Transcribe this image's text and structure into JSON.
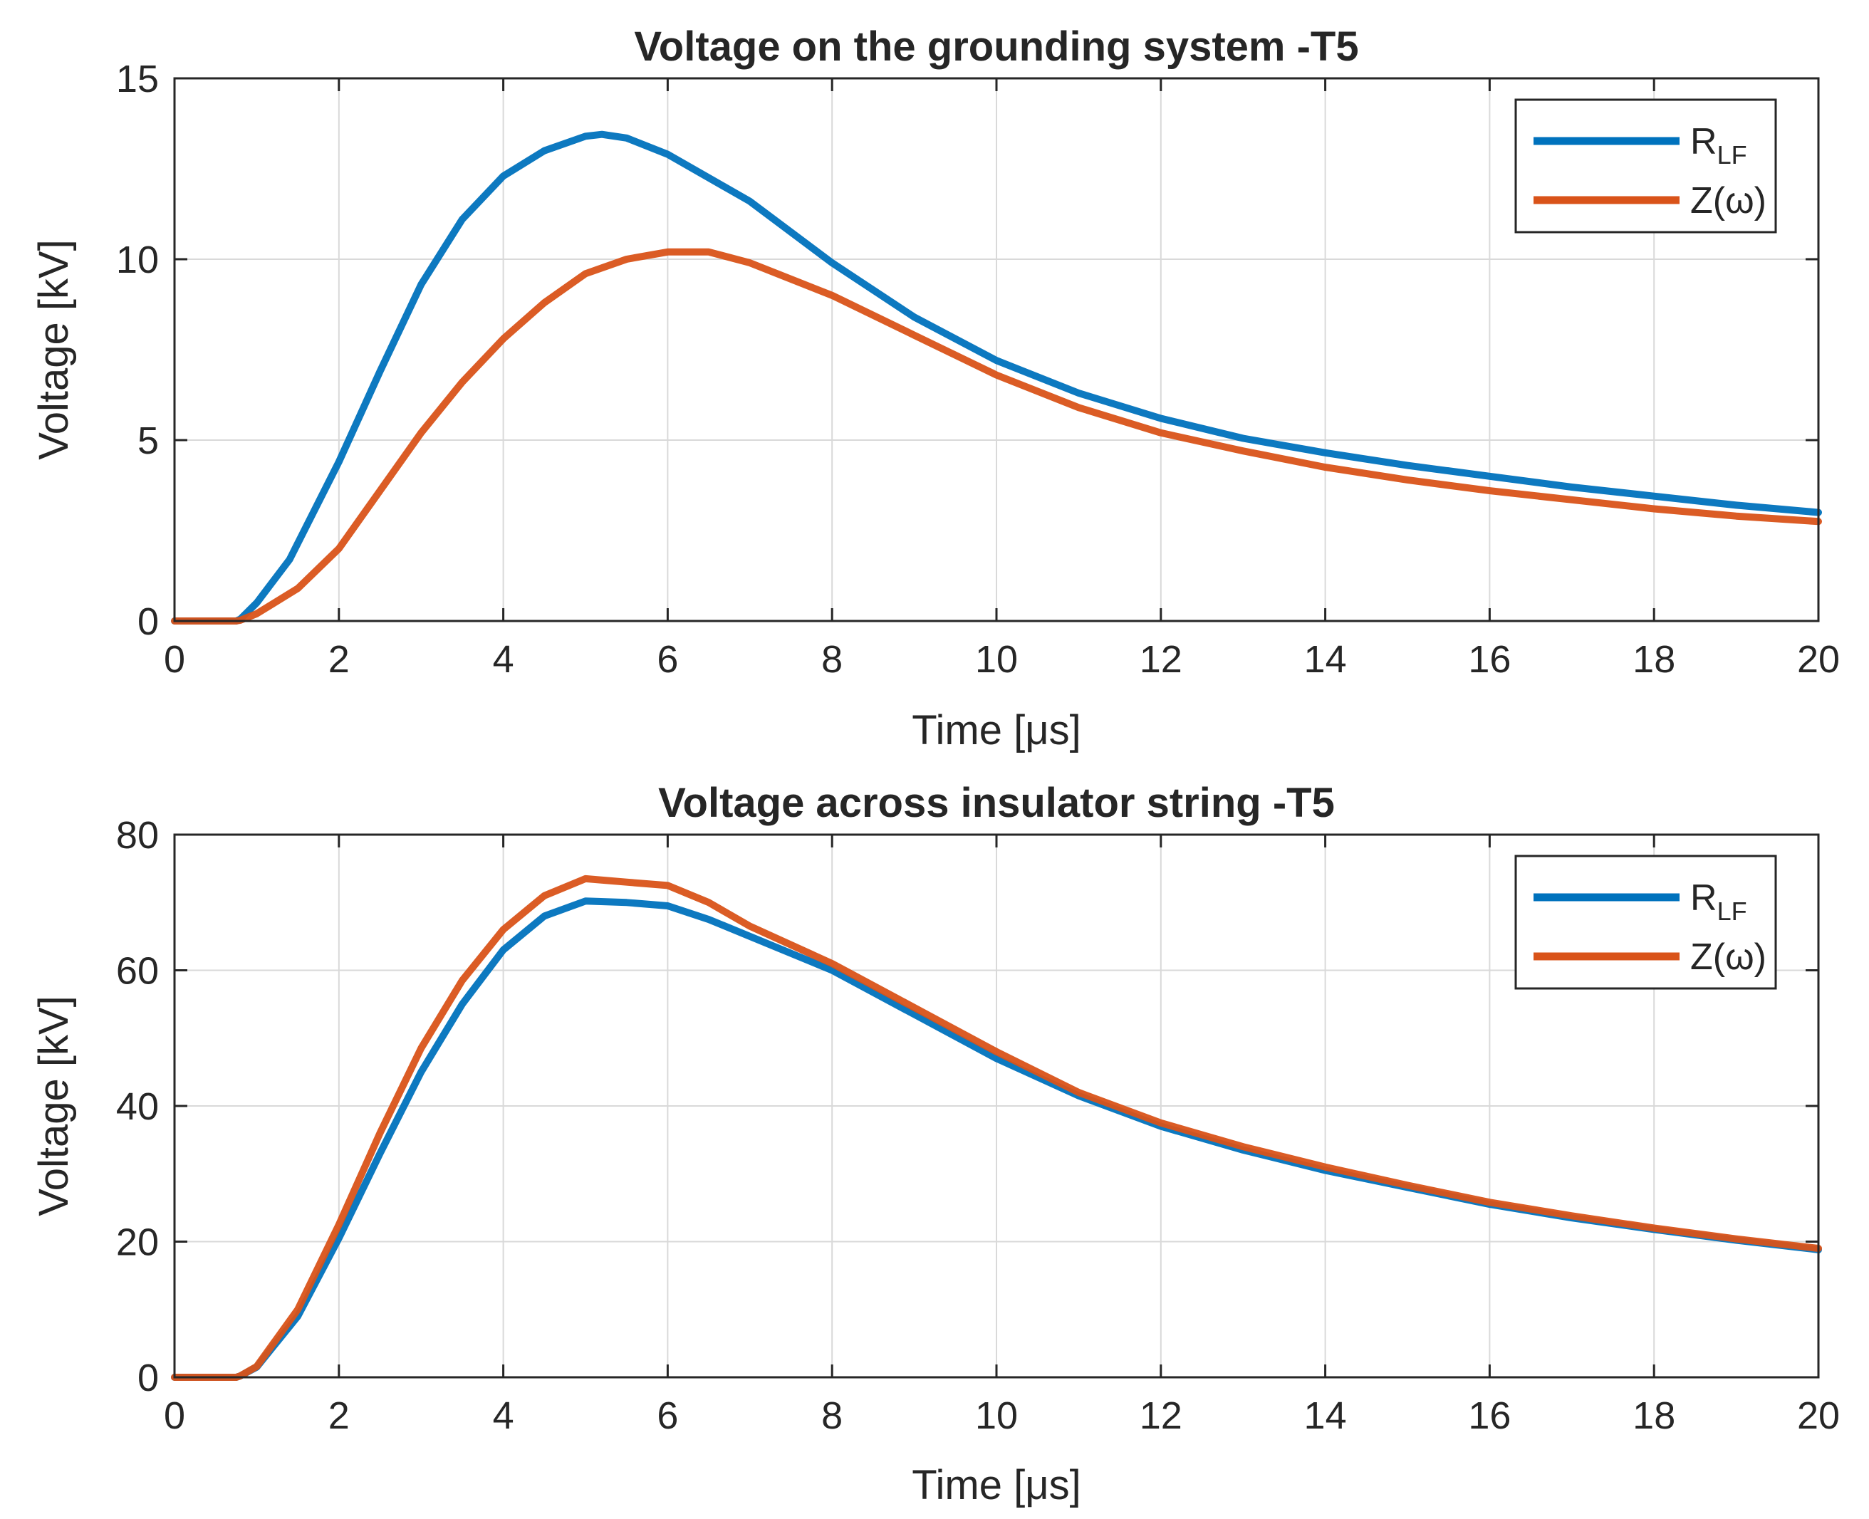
{
  "chart_data": [
    {
      "type": "line",
      "title": "Voltage on the grounding system -T5",
      "xlabel": "Time [μs]",
      "ylabel": "Voltage [kV]",
      "xlim": [
        0,
        20
      ],
      "ylim": [
        0,
        15
      ],
      "xticks": [
        "0",
        "2",
        "4",
        "6",
        "8",
        "10",
        "12",
        "14",
        "16",
        "18",
        "20"
      ],
      "yticks": [
        "0",
        "5",
        "10",
        "15"
      ],
      "grid": true,
      "legend_position": "top-right",
      "series": [
        {
          "name": "R_LF",
          "legend_main": "R",
          "legend_sub": "LF",
          "color": "#0072BD",
          "x": [
            0,
            0.75,
            0.8,
            1.0,
            1.4,
            2.0,
            2.5,
            3.0,
            3.5,
            4.0,
            4.5,
            5.0,
            5.2,
            5.5,
            6.0,
            7.0,
            8.0,
            9.0,
            10.0,
            11.0,
            12.0,
            13.0,
            14.0,
            15.0,
            16.0,
            17.0,
            18.0,
            19.0,
            20.0
          ],
          "y": [
            0,
            0,
            0.05,
            0.5,
            1.7,
            4.4,
            6.9,
            9.3,
            11.1,
            12.3,
            13.0,
            13.4,
            13.45,
            13.35,
            12.9,
            11.6,
            9.9,
            8.4,
            7.2,
            6.3,
            5.6,
            5.05,
            4.65,
            4.3,
            4.0,
            3.7,
            3.45,
            3.2,
            3.0
          ]
        },
        {
          "name": "Z(ω)",
          "legend_main": "Z(ω)",
          "legend_sub": "",
          "color": "#D95319",
          "x": [
            0,
            0.75,
            0.8,
            1.0,
            1.5,
            2.0,
            2.5,
            3.0,
            3.5,
            4.0,
            4.5,
            5.0,
            5.5,
            6.0,
            6.5,
            7.0,
            8.0,
            9.0,
            10.0,
            11.0,
            12.0,
            13.0,
            14.0,
            15.0,
            16.0,
            17.0,
            18.0,
            19.0,
            20.0
          ],
          "y": [
            0,
            0,
            0.02,
            0.2,
            0.9,
            2.0,
            3.6,
            5.2,
            6.6,
            7.8,
            8.8,
            9.6,
            10.0,
            10.2,
            10.2,
            9.9,
            9.0,
            7.9,
            6.8,
            5.9,
            5.2,
            4.7,
            4.25,
            3.9,
            3.6,
            3.35,
            3.1,
            2.9,
            2.75
          ]
        }
      ]
    },
    {
      "type": "line",
      "title": "Voltage across insulator string -T5",
      "xlabel": "Time [μs]",
      "ylabel": "Voltage [kV]",
      "xlim": [
        0,
        20
      ],
      "ylim": [
        0,
        80
      ],
      "xticks": [
        "0",
        "2",
        "4",
        "6",
        "8",
        "10",
        "12",
        "14",
        "16",
        "18",
        "20"
      ],
      "yticks": [
        "0",
        "20",
        "40",
        "60",
        "80"
      ],
      "grid": true,
      "legend_position": "top-right",
      "series": [
        {
          "name": "R_LF",
          "legend_main": "R",
          "legend_sub": "LF",
          "color": "#0072BD",
          "x": [
            0,
            0.75,
            0.8,
            1.0,
            1.5,
            2.0,
            2.5,
            3.0,
            3.5,
            4.0,
            4.5,
            5.0,
            5.5,
            6.0,
            6.5,
            7.0,
            8.0,
            9.0,
            10.0,
            11.0,
            12.0,
            13.0,
            14.0,
            15.0,
            16.0,
            17.0,
            18.0,
            19.0,
            20.0
          ],
          "y": [
            0,
            0,
            0.2,
            1.5,
            9.0,
            20.5,
            33.0,
            45.0,
            55.0,
            63.0,
            68.0,
            70.2,
            70.0,
            69.5,
            67.5,
            65.0,
            60.0,
            53.5,
            47.0,
            41.5,
            37.0,
            33.5,
            30.5,
            28.0,
            25.5,
            23.5,
            21.8,
            20.2,
            18.8
          ]
        },
        {
          "name": "Z(ω)",
          "legend_main": "Z(ω)",
          "legend_sub": "",
          "color": "#D95319",
          "x": [
            0,
            0.75,
            0.8,
            1.0,
            1.5,
            2.0,
            2.5,
            3.0,
            3.5,
            4.0,
            4.5,
            5.0,
            5.5,
            6.0,
            6.5,
            7.0,
            8.0,
            9.0,
            10.0,
            11.0,
            12.0,
            13.0,
            14.0,
            15.0,
            16.0,
            17.0,
            18.0,
            19.0,
            20.0
          ],
          "y": [
            0,
            0,
            0.2,
            1.6,
            10.0,
            22.5,
            36.0,
            48.5,
            58.5,
            66.0,
            71.0,
            73.5,
            73.0,
            72.5,
            70.0,
            66.5,
            61.0,
            54.5,
            48.0,
            42.0,
            37.5,
            34.0,
            31.0,
            28.3,
            25.8,
            23.8,
            22.0,
            20.4,
            19.0
          ]
        }
      ]
    }
  ]
}
